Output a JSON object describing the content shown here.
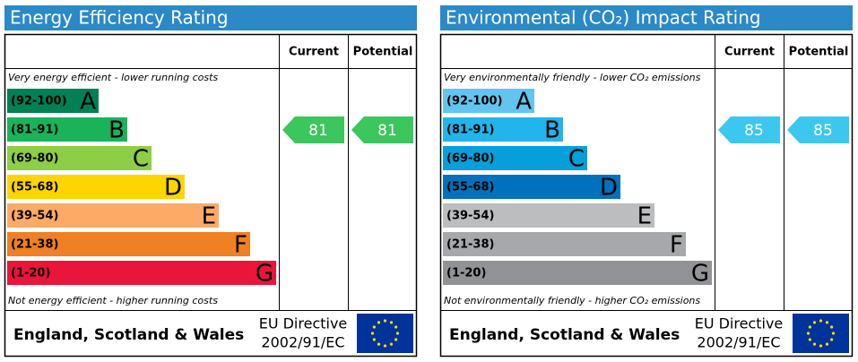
{
  "panels": [
    {
      "title": "Energy Efficiency Rating",
      "columns": [
        "Current",
        "Potential"
      ],
      "top_note": "Very energy efficient - lower running costs",
      "bottom_note": "Not energy efficient - higher running costs",
      "bands": [
        {
          "range": "(92-100)",
          "letter": "A",
          "color": "#008054"
        },
        {
          "range": "(81-91)",
          "letter": "B",
          "color": "#19b459"
        },
        {
          "range": "(69-80)",
          "letter": "C",
          "color": "#8dce46"
        },
        {
          "range": "(55-68)",
          "letter": "D",
          "color": "#ffd500"
        },
        {
          "range": "(39-54)",
          "letter": "E",
          "color": "#fcaa65"
        },
        {
          "range": "(21-38)",
          "letter": "F",
          "color": "#ef8023"
        },
        {
          "range": "(1-20)",
          "letter": "G",
          "color": "#e9153b"
        }
      ],
      "current": 81,
      "potential": 81,
      "arrow_color": "#3cc65e",
      "footer": {
        "region": "England, Scotland & Wales",
        "directive": "EU Directive",
        "code": "2002/91/EC"
      }
    },
    {
      "title": "Environmental (CO₂) Impact Rating",
      "columns": [
        "Current",
        "Potential"
      ],
      "top_note": "Very environmentally friendly - lower CO₂ emissions",
      "bottom_note": "Not environmentally friendly - higher CO₂ emissions",
      "bands": [
        {
          "range": "(92-100)",
          "letter": "A",
          "color": "#63c5ef"
        },
        {
          "range": "(81-91)",
          "letter": "B",
          "color": "#22b5eb"
        },
        {
          "range": "(69-80)",
          "letter": "C",
          "color": "#069fd9"
        },
        {
          "range": "(55-68)",
          "letter": "D",
          "color": "#0071bc"
        },
        {
          "range": "(39-54)",
          "letter": "E",
          "color": "#bbbdbf"
        },
        {
          "range": "(21-38)",
          "letter": "F",
          "color": "#a6a8ab"
        },
        {
          "range": "(1-20)",
          "letter": "G",
          "color": "#919396"
        }
      ],
      "current": 85,
      "potential": 85,
      "arrow_color": "#3cc8ee",
      "footer": {
        "region": "England, Scotland & Wales",
        "directive": "EU Directive",
        "code": "2002/91/EC"
      }
    }
  ]
}
